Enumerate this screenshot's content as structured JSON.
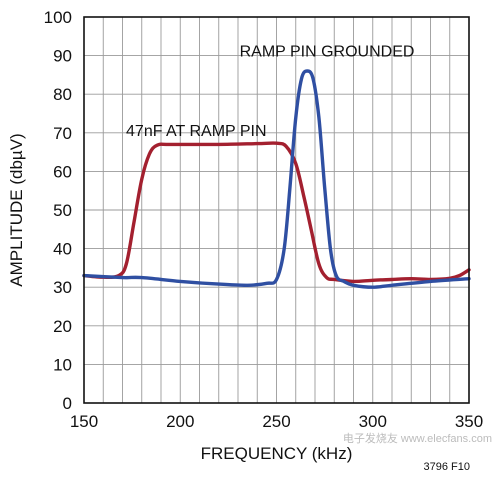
{
  "chart_data": {
    "type": "line",
    "xlabel": "FREQUENCY (kHz)",
    "ylabel": "AMPLITUDE (dbµV)",
    "xlim": [
      150,
      350
    ],
    "ylim": [
      0,
      100
    ],
    "x_ticks": [
      150,
      200,
      250,
      300,
      350
    ],
    "y_ticks": [
      0,
      10,
      20,
      30,
      40,
      50,
      60,
      70,
      80,
      90,
      100
    ],
    "grid": true,
    "series": [
      {
        "name": "47nF AT RAMP PIN",
        "color": "#a3202f",
        "x": [
          150,
          160,
          168,
          172,
          176,
          180,
          184,
          188,
          195,
          220,
          240,
          250,
          255,
          260,
          264,
          268,
          272,
          276,
          280,
          290,
          300,
          310,
          320,
          330,
          340,
          345,
          350
        ],
        "y": [
          33,
          32.6,
          33,
          36,
          47,
          58,
          64.5,
          66.8,
          67,
          67,
          67.2,
          67.3,
          66.5,
          62,
          54,
          45,
          36,
          32.5,
          32,
          31.5,
          31.8,
          32,
          32.2,
          32,
          32.3,
          33,
          34.5
        ]
      },
      {
        "name": "RAMP PIN GROUNDED",
        "color": "#2f4fa2",
        "x": [
          150,
          170,
          180,
          200,
          220,
          235,
          245,
          250,
          254,
          257,
          260,
          263,
          266,
          269,
          272,
          275,
          278,
          281,
          285,
          290,
          300,
          310,
          330,
          350
        ],
        "y": [
          33,
          32.5,
          32.5,
          31.5,
          30.8,
          30.5,
          31,
          32,
          40,
          56,
          74,
          84,
          86,
          84,
          74,
          56,
          40,
          33,
          31.5,
          30.5,
          30,
          30.5,
          31.5,
          32.2
        ]
      }
    ],
    "annotations": [
      {
        "text": "RAMP PIN GROUNDED",
        "x": 262,
        "y": 91
      },
      {
        "text": "47nF AT RAMP PIN",
        "x": 203,
        "y": 70.5
      }
    ],
    "figure_code": "3796 F10",
    "watermark": "电子发烧友 www.elecfans.com"
  }
}
